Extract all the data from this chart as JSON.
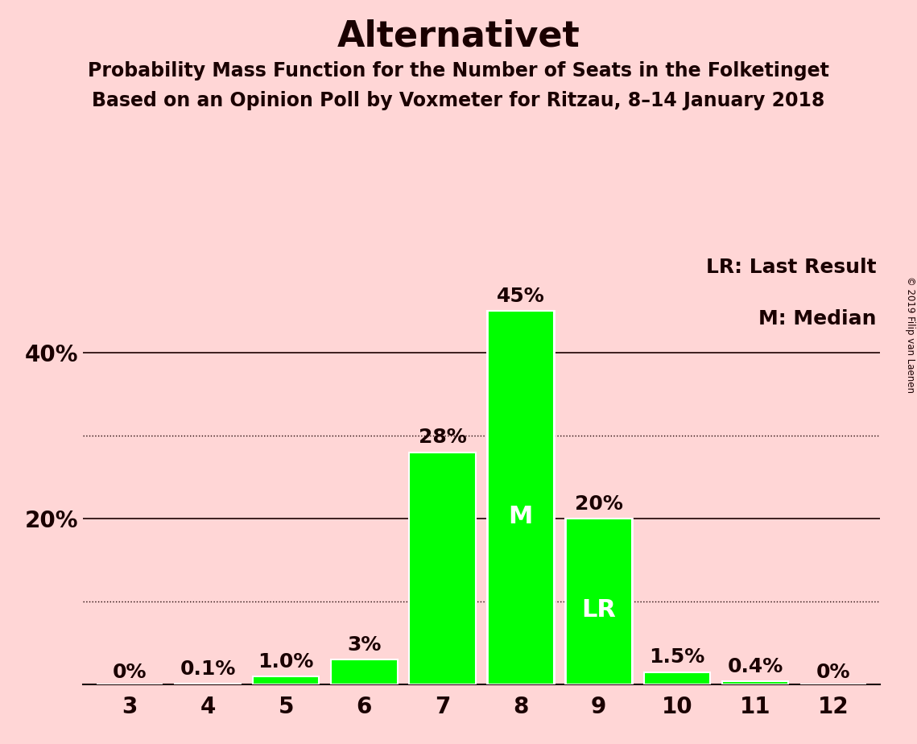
{
  "title": "Alternativet",
  "subtitle1": "Probability Mass Function for the Number of Seats in the Folketinget",
  "subtitle2": "Based on an Opinion Poll by Voxmeter for Ritzau, 8–14 January 2018",
  "copyright": "© 2019 Filip van Laenen",
  "categories": [
    3,
    4,
    5,
    6,
    7,
    8,
    9,
    10,
    11,
    12
  ],
  "values": [
    0.0,
    0.1,
    1.0,
    3.0,
    28.0,
    45.0,
    20.0,
    1.5,
    0.4,
    0.0
  ],
  "labels": [
    "0%",
    "0.1%",
    "1.0%",
    "3%",
    "28%",
    "45%",
    "20%",
    "1.5%",
    "0.4%",
    "0%"
  ],
  "bar_color": "#00ff00",
  "bar_edge_color": "#ffffff",
  "background_color": "#ffd6d6",
  "text_color": "#1a0000",
  "median_seat": 8,
  "last_result_seat": 9,
  "median_label": "M",
  "last_result_label": "LR",
  "legend_text1": "LR: Last Result",
  "legend_text2": "M: Median",
  "ylim": [
    0,
    52
  ],
  "dotted_lines": [
    10,
    30
  ],
  "solid_lines": [
    20,
    40
  ],
  "title_fontsize": 32,
  "subtitle_fontsize": 17,
  "tick_fontsize": 20,
  "annotation_fontsize": 18,
  "legend_fontsize": 18,
  "inner_label_fontsize": 22
}
